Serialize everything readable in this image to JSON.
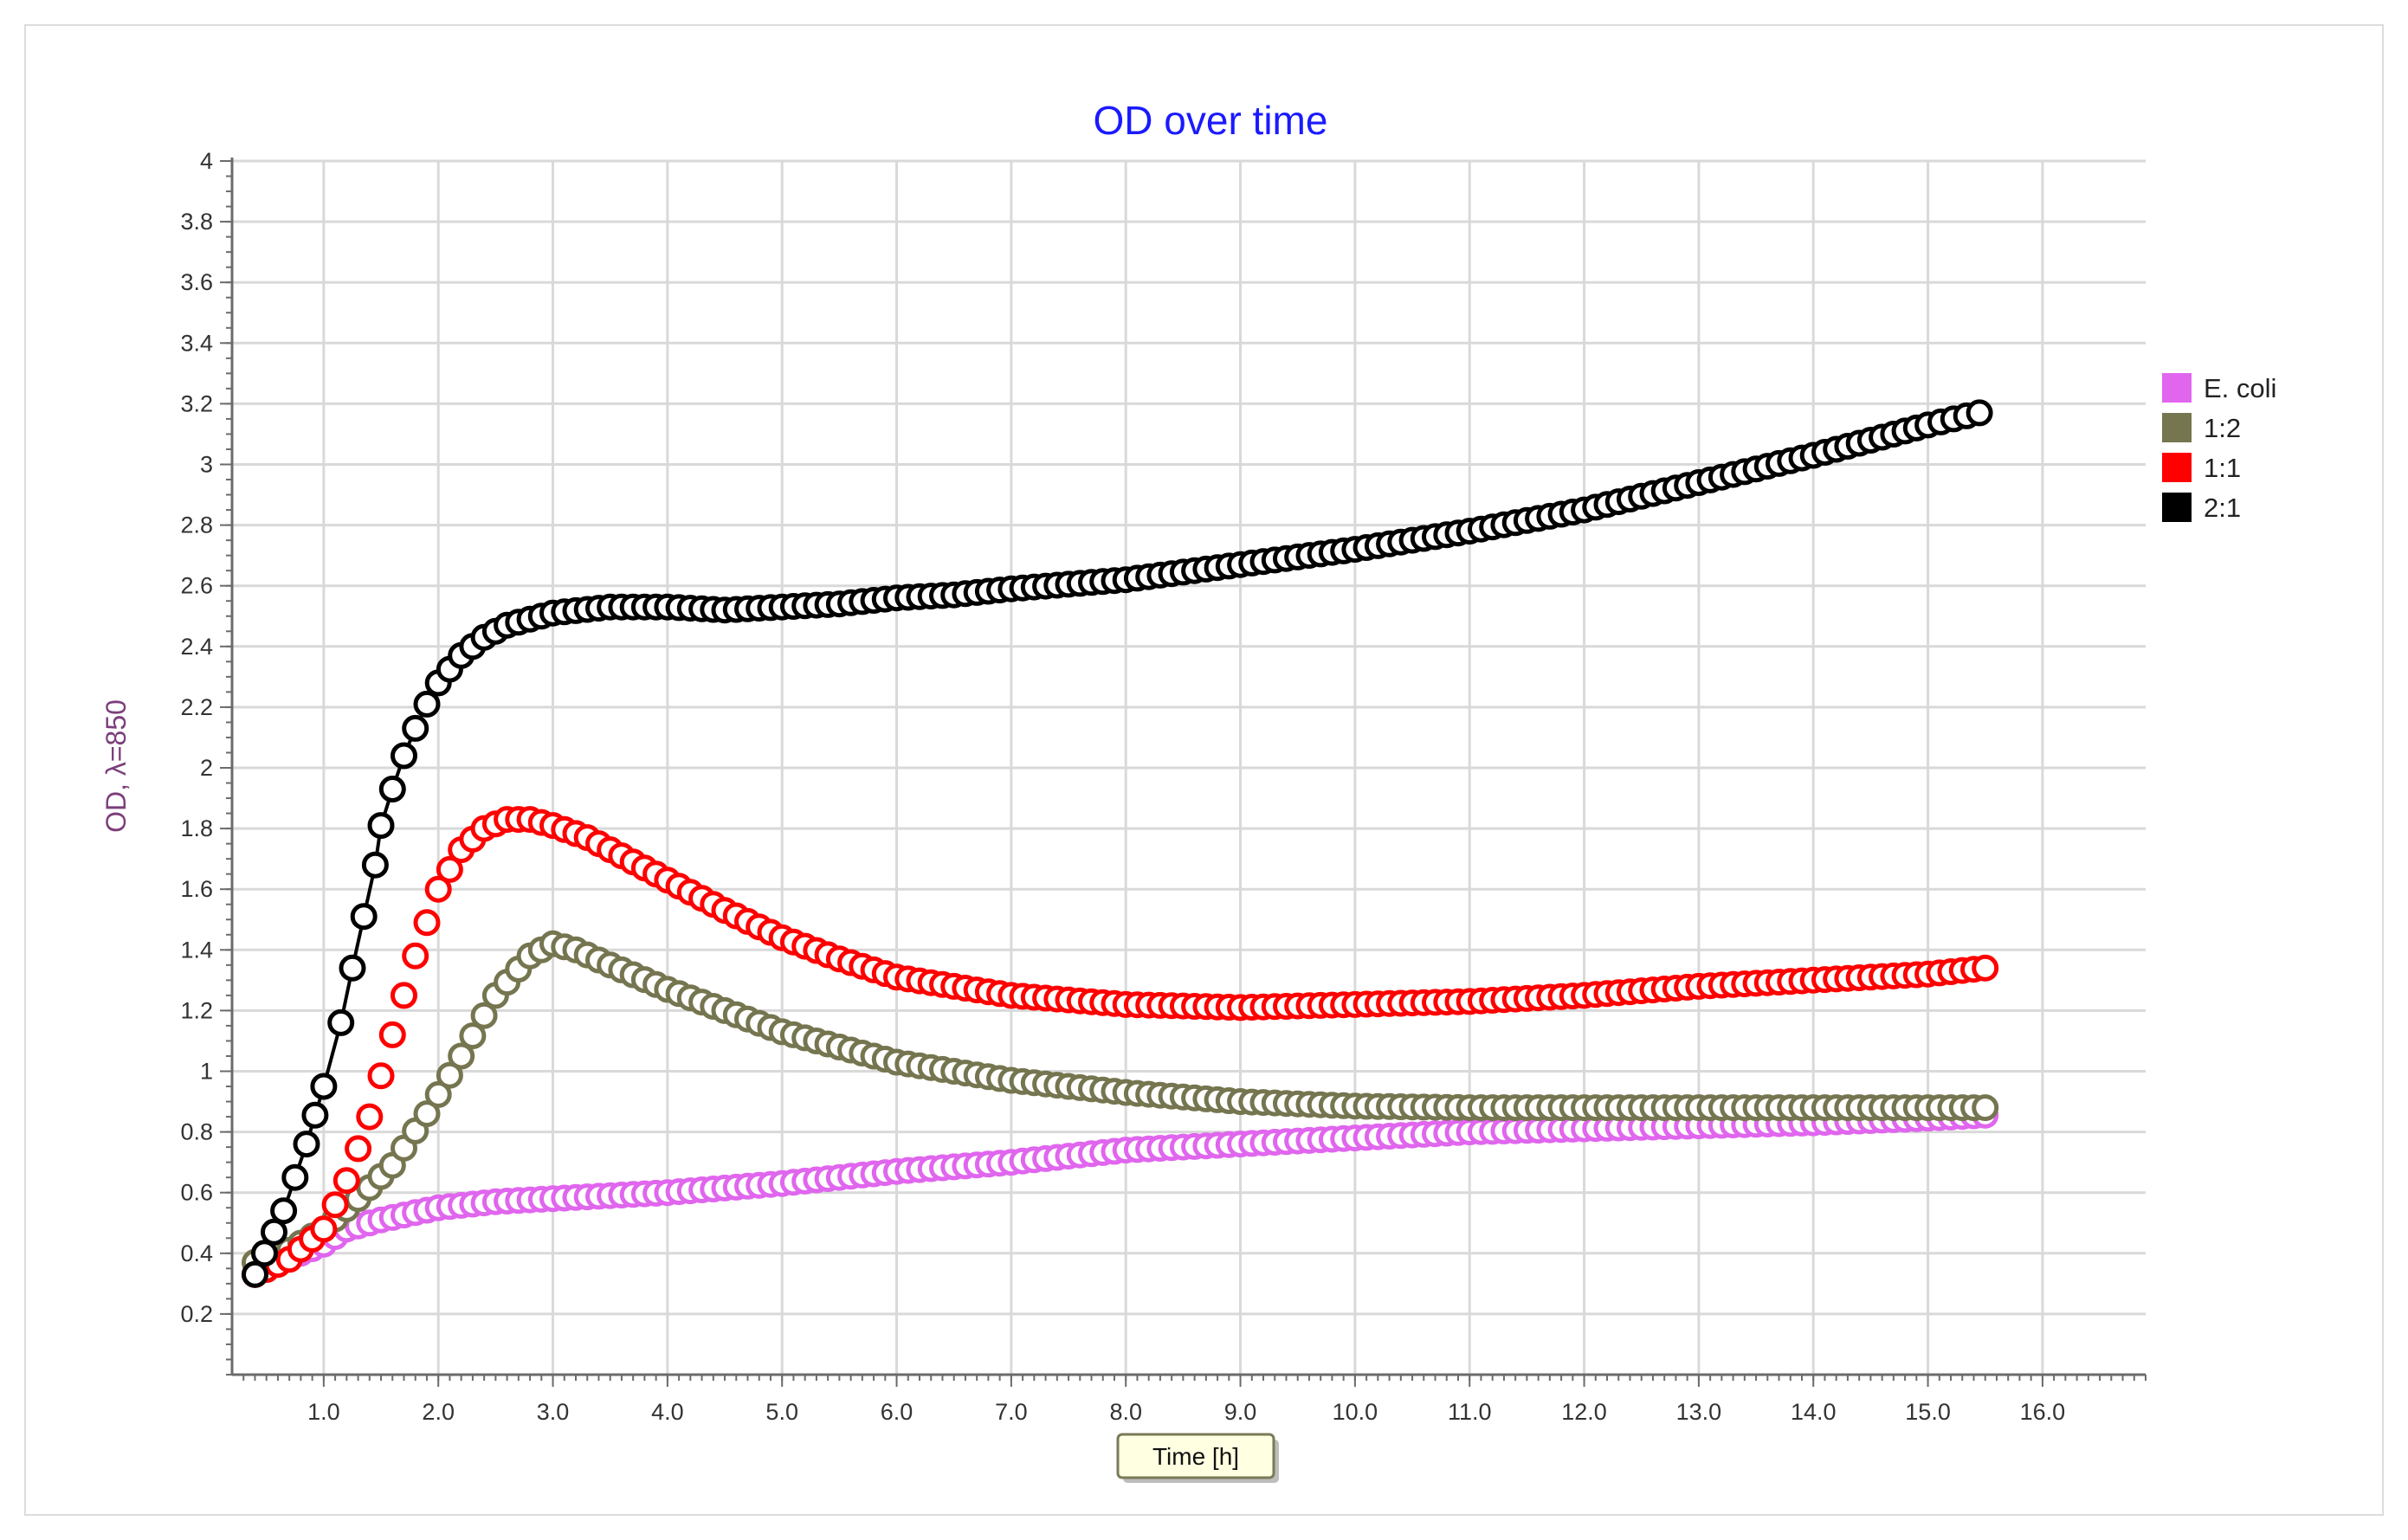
{
  "chart_data": {
    "type": "scatter",
    "title": "OD over time",
    "xlabel": "Time [h]",
    "ylabel": "OD, λ=850",
    "xlim": [
      0.2,
      16.9
    ],
    "ylim": [
      0,
      4
    ],
    "x_ticks": [
      "1.0",
      "2.0",
      "3.0",
      "4.0",
      "5.0",
      "6.0",
      "7.0",
      "8.0",
      "9.0",
      "10.0",
      "11.0",
      "12.0",
      "13.0",
      "14.0",
      "15.0",
      "16.0"
    ],
    "y_ticks": [
      "0.2",
      "0.4",
      "0.6",
      "0.8",
      "1",
      "1.2",
      "1.4",
      "1.6",
      "1.8",
      "2",
      "2.2",
      "2.4",
      "2.6",
      "2.8",
      "3",
      "3.2",
      "3.4",
      "3.6",
      "3.8",
      "4"
    ],
    "grid": true,
    "legend_position": "right",
    "colors": {
      "title": "#1a1aff",
      "ylabel": "#7b3f7b"
    },
    "series": [
      {
        "name": "E. coli",
        "color": "#e066ee",
        "marker": "open-circle",
        "line": false,
        "points": [
          [
            0.4,
            0.33
          ],
          [
            0.6,
            0.37
          ],
          [
            0.8,
            0.4
          ],
          [
            1.0,
            0.43
          ],
          [
            1.2,
            0.48
          ],
          [
            1.5,
            0.51
          ],
          [
            2.0,
            0.55
          ],
          [
            2.5,
            0.57
          ],
          [
            3.0,
            0.58
          ],
          [
            3.5,
            0.59
          ],
          [
            4.0,
            0.6
          ],
          [
            5.0,
            0.63
          ],
          [
            6.0,
            0.67
          ],
          [
            7.0,
            0.7
          ],
          [
            8.0,
            0.74
          ],
          [
            9.0,
            0.76
          ],
          [
            10.0,
            0.78
          ],
          [
            11.0,
            0.8
          ],
          [
            12.0,
            0.81
          ],
          [
            13.0,
            0.82
          ],
          [
            14.0,
            0.83
          ],
          [
            15.0,
            0.845
          ],
          [
            15.5,
            0.855
          ]
        ]
      },
      {
        "name": "1:2",
        "color": "#757550",
        "marker": "open-circle",
        "line": false,
        "points": [
          [
            0.4,
            0.37
          ],
          [
            0.7,
            0.41
          ],
          [
            1.0,
            0.48
          ],
          [
            1.3,
            0.58
          ],
          [
            1.6,
            0.69
          ],
          [
            1.9,
            0.86
          ],
          [
            2.2,
            1.05
          ],
          [
            2.5,
            1.25
          ],
          [
            2.8,
            1.38
          ],
          [
            3.0,
            1.42
          ],
          [
            3.2,
            1.4
          ],
          [
            3.5,
            1.35
          ],
          [
            4.0,
            1.27
          ],
          [
            4.5,
            1.2
          ],
          [
            5.0,
            1.13
          ],
          [
            5.5,
            1.08
          ],
          [
            6.0,
            1.03
          ],
          [
            7.0,
            0.97
          ],
          [
            8.0,
            0.93
          ],
          [
            9.0,
            0.9
          ],
          [
            10.0,
            0.885
          ],
          [
            11.0,
            0.88
          ],
          [
            12.0,
            0.88
          ],
          [
            13.0,
            0.88
          ],
          [
            14.0,
            0.88
          ],
          [
            15.0,
            0.88
          ],
          [
            15.5,
            0.88
          ]
        ]
      },
      {
        "name": "1:1",
        "color": "#ff0000",
        "marker": "open-circle",
        "line": false,
        "points": [
          [
            0.4,
            0.33
          ],
          [
            0.7,
            0.38
          ],
          [
            1.0,
            0.48
          ],
          [
            1.2,
            0.64
          ],
          [
            1.4,
            0.85
          ],
          [
            1.6,
            1.12
          ],
          [
            1.8,
            1.38
          ],
          [
            2.0,
            1.6
          ],
          [
            2.2,
            1.73
          ],
          [
            2.4,
            1.8
          ],
          [
            2.6,
            1.83
          ],
          [
            2.8,
            1.83
          ],
          [
            3.0,
            1.81
          ],
          [
            3.3,
            1.77
          ],
          [
            3.6,
            1.71
          ],
          [
            4.0,
            1.63
          ],
          [
            4.5,
            1.53
          ],
          [
            5.0,
            1.44
          ],
          [
            5.5,
            1.37
          ],
          [
            6.0,
            1.31
          ],
          [
            6.5,
            1.28
          ],
          [
            7.0,
            1.25
          ],
          [
            8.0,
            1.22
          ],
          [
            9.0,
            1.21
          ],
          [
            10.0,
            1.22
          ],
          [
            11.0,
            1.23
          ],
          [
            12.0,
            1.25
          ],
          [
            13.0,
            1.28
          ],
          [
            14.0,
            1.3
          ],
          [
            15.0,
            1.32
          ],
          [
            15.5,
            1.34
          ]
        ]
      },
      {
        "name": "2:1",
        "color": "#000000",
        "marker": "open-circle",
        "line": true,
        "points": [
          [
            0.4,
            0.33
          ],
          [
            0.65,
            0.54
          ],
          [
            0.85,
            0.76
          ],
          [
            1.0,
            0.95
          ],
          [
            1.15,
            1.16
          ],
          [
            1.25,
            1.34
          ],
          [
            1.35,
            1.51
          ],
          [
            1.45,
            1.68
          ],
          [
            1.5,
            1.81
          ],
          [
            1.6,
            1.93
          ],
          [
            1.7,
            2.04
          ],
          [
            1.8,
            2.13
          ],
          [
            1.9,
            2.21
          ],
          [
            2.0,
            2.28
          ],
          [
            2.2,
            2.37
          ],
          [
            2.4,
            2.43
          ],
          [
            2.6,
            2.47
          ],
          [
            2.8,
            2.49
          ],
          [
            3.0,
            2.51
          ],
          [
            3.5,
            2.53
          ],
          [
            4.0,
            2.53
          ],
          [
            4.5,
            2.52
          ],
          [
            5.0,
            2.53
          ],
          [
            5.5,
            2.54
          ],
          [
            6.0,
            2.56
          ],
          [
            6.5,
            2.57
          ],
          [
            7.0,
            2.59
          ],
          [
            8.0,
            2.62
          ],
          [
            9.0,
            2.67
          ],
          [
            10.0,
            2.72
          ],
          [
            11.0,
            2.78
          ],
          [
            12.0,
            2.85
          ],
          [
            13.0,
            2.94
          ],
          [
            14.0,
            3.03
          ],
          [
            15.0,
            3.13
          ],
          [
            15.45,
            3.17
          ]
        ]
      }
    ]
  }
}
